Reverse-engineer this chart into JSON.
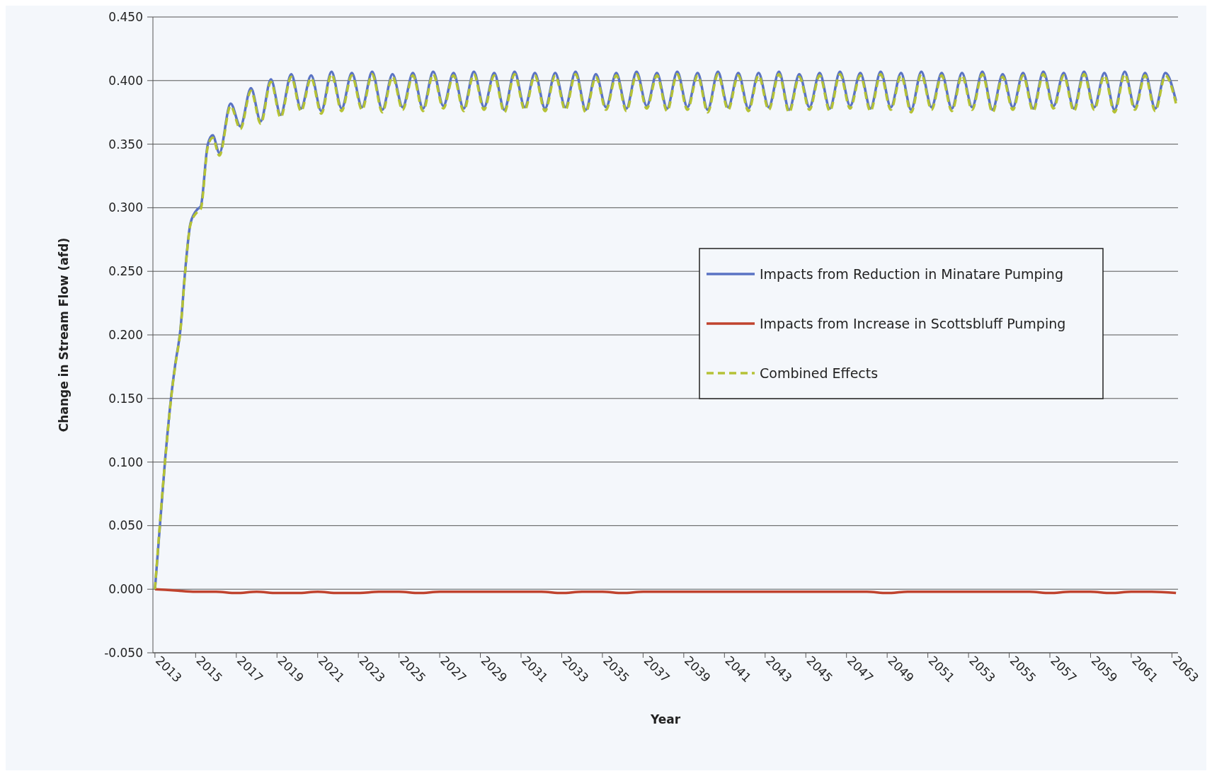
{
  "chart_data": {
    "type": "line",
    "xlabel": "Year",
    "ylabel": "Change in Stream Flow (afd)",
    "x": [
      2013,
      2013.5,
      2013.83,
      2014,
      2014.25,
      2014.5,
      2014.75,
      2015.1,
      2015.25,
      2015.6,
      2015.84,
      2016.17,
      2016.72,
      2017.2,
      2017.72,
      2018.2,
      2018.7,
      2019.18,
      2019.7,
      2020.18,
      2020.68,
      2021.18,
      2021.68,
      2022.18,
      2022.68,
      2023.18,
      2023.68,
      2024.18,
      2024.68,
      2025.18,
      2025.68,
      2026.18,
      2026.68,
      2027.18,
      2027.68,
      2028.18,
      2028.68,
      2029.18,
      2029.68,
      2030.18,
      2030.68,
      2031.18,
      2031.68,
      2032.18,
      2032.68,
      2033.18,
      2033.68,
      2034.18,
      2034.68,
      2035.18,
      2035.68,
      2036.18,
      2036.68,
      2037.18,
      2037.68,
      2038.18,
      2038.68,
      2039.18,
      2039.68,
      2040.18,
      2040.68,
      2041.18,
      2041.68,
      2042.18,
      2042.68,
      2043.18,
      2043.68,
      2044.18,
      2044.68,
      2045.18,
      2045.68,
      2046.18,
      2046.68,
      2047.18,
      2047.68,
      2048.18,
      2048.68,
      2049.18,
      2049.68,
      2050.18,
      2050.68,
      2051.18,
      2051.68,
      2052.18,
      2052.68,
      2053.18,
      2053.68,
      2054.18,
      2054.68,
      2055.18,
      2055.68,
      2056.18,
      2056.68,
      2057.18,
      2057.68,
      2058.18,
      2058.68,
      2059.18,
      2059.68,
      2060.18,
      2060.68,
      2061.18,
      2061.68,
      2062.18,
      2062.68,
      2063.2
    ],
    "series": [
      {
        "name": "Impacts from Reduction in Minatare Pumping",
        "color": "#5a73c4",
        "line_style": "solid",
        "values": [
          0,
          0.102,
          0.156,
          0.177,
          0.204,
          0.253,
          0.288,
          0.299,
          0.301,
          0.35,
          0.357,
          0.343,
          0.382,
          0.364,
          0.394,
          0.368,
          0.401,
          0.373,
          0.405,
          0.378,
          0.404,
          0.376,
          0.407,
          0.378,
          0.406,
          0.379,
          0.407,
          0.377,
          0.405,
          0.379,
          0.406,
          0.378,
          0.407,
          0.38,
          0.406,
          0.378,
          0.407,
          0.379,
          0.406,
          0.377,
          0.407,
          0.379,
          0.406,
          0.378,
          0.406,
          0.379,
          0.407,
          0.377,
          0.405,
          0.379,
          0.406,
          0.378,
          0.407,
          0.38,
          0.406,
          0.378,
          0.407,
          0.379,
          0.406,
          0.377,
          0.407,
          0.379,
          0.406,
          0.378,
          0.406,
          0.379,
          0.407,
          0.377,
          0.405,
          0.379,
          0.406,
          0.378,
          0.407,
          0.38,
          0.406,
          0.378,
          0.407,
          0.379,
          0.406,
          0.377,
          0.407,
          0.379,
          0.406,
          0.378,
          0.406,
          0.379,
          0.407,
          0.377,
          0.405,
          0.379,
          0.406,
          0.378,
          0.407,
          0.38,
          0.406,
          0.378,
          0.407,
          0.379,
          0.406,
          0.377,
          0.407,
          0.379,
          0.406,
          0.378,
          0.406,
          0.384
        ]
      },
      {
        "name": "Impacts from Increase in Scottsbluff Pumping",
        "color": "#c0432e",
        "line_style": "solid",
        "x": [
          2013,
          2014,
          2015,
          2016,
          2017,
          2018,
          2019,
          2020,
          2021,
          2022,
          2023,
          2024,
          2025,
          2026,
          2027,
          2028,
          2029,
          2030,
          2031,
          2032,
          2033,
          2034,
          2035,
          2036,
          2037,
          2038,
          2039,
          2040,
          2041,
          2042,
          2043,
          2044,
          2045,
          2046,
          2047,
          2048,
          2049,
          2050,
          2051,
          2052,
          2053,
          2054,
          2055,
          2056,
          2057,
          2058,
          2059,
          2060,
          2061,
          2062,
          2063.2
        ],
        "values": [
          0,
          -0.001,
          -0.002,
          -0.002,
          -0.003,
          -0.002,
          -0.003,
          -0.003,
          -0.002,
          -0.003,
          -0.003,
          -0.002,
          -0.002,
          -0.003,
          -0.002,
          -0.002,
          -0.002,
          -0.002,
          -0.002,
          -0.002,
          -0.003,
          -0.002,
          -0.002,
          -0.003,
          -0.002,
          -0.002,
          -0.002,
          -0.002,
          -0.002,
          -0.002,
          -0.002,
          -0.002,
          -0.002,
          -0.002,
          -0.002,
          -0.002,
          -0.003,
          -0.002,
          -0.002,
          -0.002,
          -0.002,
          -0.002,
          -0.002,
          -0.002,
          -0.003,
          -0.002,
          -0.002,
          -0.003,
          -0.002,
          -0.002,
          -0.003
        ]
      },
      {
        "name": "Combined Effects",
        "color": "#b5c236",
        "line_style": "dashed",
        "values": [
          0,
          0.101,
          0.155,
          0.176,
          0.203,
          0.252,
          0.287,
          0.297,
          0.299,
          0.348,
          0.355,
          0.341,
          0.38,
          0.362,
          0.392,
          0.366,
          0.399,
          0.371,
          0.403,
          0.376,
          0.402,
          0.374,
          0.405,
          0.376,
          0.404,
          0.377,
          0.405,
          0.375,
          0.403,
          0.377,
          0.404,
          0.376,
          0.405,
          0.378,
          0.404,
          0.376,
          0.405,
          0.377,
          0.404,
          0.375,
          0.405,
          0.377,
          0.404,
          0.376,
          0.404,
          0.377,
          0.405,
          0.375,
          0.403,
          0.377,
          0.404,
          0.376,
          0.405,
          0.378,
          0.404,
          0.376,
          0.405,
          0.377,
          0.404,
          0.375,
          0.405,
          0.377,
          0.404,
          0.376,
          0.404,
          0.377,
          0.405,
          0.375,
          0.403,
          0.377,
          0.404,
          0.376,
          0.405,
          0.378,
          0.404,
          0.376,
          0.405,
          0.377,
          0.404,
          0.375,
          0.405,
          0.377,
          0.404,
          0.376,
          0.404,
          0.377,
          0.405,
          0.375,
          0.403,
          0.377,
          0.404,
          0.376,
          0.405,
          0.378,
          0.404,
          0.376,
          0.405,
          0.377,
          0.404,
          0.375,
          0.405,
          0.377,
          0.404,
          0.376,
          0.404,
          0.382
        ]
      }
    ],
    "xlim": [
      2012.9,
      2063.3
    ],
    "xticks": [
      2013,
      2015,
      2017,
      2019,
      2021,
      2023,
      2025,
      2027,
      2029,
      2031,
      2033,
      2035,
      2037,
      2039,
      2041,
      2043,
      2045,
      2047,
      2049,
      2051,
      2053,
      2055,
      2057,
      2059,
      2061,
      2063
    ],
    "ylim": [
      -0.05,
      0.45
    ],
    "yticks": [
      {
        "value": -0.05,
        "label": "-0.050"
      },
      {
        "value": 0,
        "label": "0.000"
      },
      {
        "value": 0.05,
        "label": "0.050"
      },
      {
        "value": 0.1,
        "label": "0.100"
      },
      {
        "value": 0.15,
        "label": "0.150"
      },
      {
        "value": 0.2,
        "label": "0.200"
      },
      {
        "value": 0.25,
        "label": "0.250"
      },
      {
        "value": 0.3,
        "label": "0.300"
      },
      {
        "value": 0.35,
        "label": "0.350"
      },
      {
        "value": 0.4,
        "label": "0.400"
      },
      {
        "value": 0.45,
        "label": "0.450"
      }
    ],
    "grid": "y",
    "legend": "right",
    "marker": "none"
  }
}
